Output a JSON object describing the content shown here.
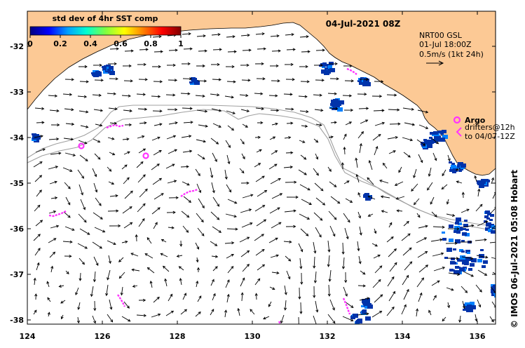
{
  "map": {
    "date_title": "04-Jul-2021 08Z",
    "colorbar": {
      "title": "std dev of 4hr SST comp",
      "ticks": [
        "0",
        "0.2",
        "0.4",
        "0.6",
        "0.8",
        "1"
      ],
      "colors": [
        "#000080",
        "#0000ff",
        "#00a0ff",
        "#00ffd0",
        "#80ff40",
        "#ffff00",
        "#ff8000",
        "#ff0000",
        "#800000"
      ]
    },
    "info": {
      "line1": "NRT00 GSL",
      "line2": "01-Jul 18:00Z",
      "line3": "0.5m/s (1kt 24h)"
    },
    "legend": {
      "argo_label": "Argo",
      "drifters_label": "drifters@12h",
      "drifters_to": "to 04/07-12Z"
    },
    "credit": "© IMOS 06-Jul-2021 05:08 Hobart",
    "x_ticks": [
      "124",
      "126",
      "128",
      "130",
      "132",
      "134",
      "136"
    ],
    "y_ticks": [
      "-32",
      "-33",
      "-34",
      "-35",
      "-36",
      "-37",
      "-38"
    ],
    "colors": {
      "land": "#fcc995",
      "argo": "#ff33ff",
      "isobath": "#a0a0a0",
      "sst": "#0033aa"
    }
  }
}
